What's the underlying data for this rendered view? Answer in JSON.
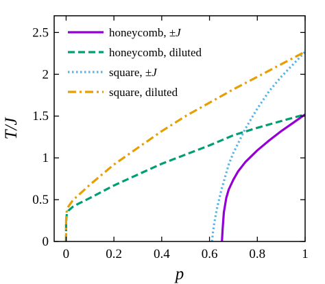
{
  "chart_data": {
    "type": "line",
    "xlabel": "p",
    "ylabel": "T/J",
    "xlim": [
      -0.05,
      1.0
    ],
    "ylim": [
      0,
      2.7
    ],
    "xticks": [
      0,
      0.2,
      0.4,
      0.6,
      0.8,
      1
    ],
    "xtick_labels": [
      "0",
      "0.2",
      "0.4",
      "0.6",
      "0.8",
      "1"
    ],
    "yticks": [
      0,
      0.5,
      1,
      1.5,
      2,
      2.5
    ],
    "ytick_labels": [
      "0",
      "0.5",
      "1",
      "1.5",
      "2",
      "2.5"
    ],
    "grid": false,
    "legend_position": "top-left",
    "series": [
      {
        "name": "honeycomb, ±J",
        "label_base": "honeycomb, ±",
        "label_var": "J",
        "color": "#9400D3",
        "style": "solid",
        "x": [
          0.652,
          0.655,
          0.66,
          0.67,
          0.68,
          0.7,
          0.72,
          0.75,
          0.8,
          0.85,
          0.9,
          0.95,
          1.0
        ],
        "y": [
          0.0,
          0.15,
          0.35,
          0.52,
          0.62,
          0.74,
          0.84,
          0.95,
          1.09,
          1.21,
          1.32,
          1.42,
          1.52
        ]
      },
      {
        "name": "honeycomb, diluted",
        "label_base": "honeycomb, diluted",
        "label_var": "",
        "color": "#009E73",
        "style": "dashed",
        "x": [
          0.0,
          0.0,
          0.001,
          0.003,
          0.01,
          0.03,
          0.05,
          0.1,
          0.2,
          0.3,
          0.4,
          0.5,
          0.6,
          0.7,
          0.8,
          0.9,
          1.0
        ],
        "y": [
          0.0,
          0.2,
          0.28,
          0.33,
          0.37,
          0.42,
          0.45,
          0.52,
          0.67,
          0.8,
          0.93,
          1.04,
          1.15,
          1.27,
          1.36,
          1.44,
          1.52
        ]
      },
      {
        "name": "square, ±J",
        "label_base": "square, ±",
        "label_var": "J",
        "color": "#56B4E9",
        "style": "dotted",
        "x": [
          0.61,
          0.615,
          0.62,
          0.63,
          0.65,
          0.68,
          0.7,
          0.75,
          0.8,
          0.85,
          0.9,
          0.95,
          1.0
        ],
        "y": [
          0.0,
          0.12,
          0.22,
          0.38,
          0.62,
          0.92,
          1.06,
          1.35,
          1.59,
          1.8,
          1.97,
          2.12,
          2.27
        ]
      },
      {
        "name": "square, diluted",
        "label_base": "square, diluted",
        "label_var": "",
        "color": "#E69F00",
        "style": "dashdot",
        "x": [
          0.0,
          0.0,
          0.002,
          0.01,
          0.03,
          0.05,
          0.1,
          0.2,
          0.3,
          0.4,
          0.5,
          0.6,
          0.7,
          0.8,
          0.9,
          1.0
        ],
        "y": [
          0.0,
          0.25,
          0.35,
          0.42,
          0.5,
          0.55,
          0.68,
          0.92,
          1.12,
          1.32,
          1.5,
          1.66,
          1.82,
          1.97,
          2.12,
          2.27
        ]
      }
    ]
  }
}
